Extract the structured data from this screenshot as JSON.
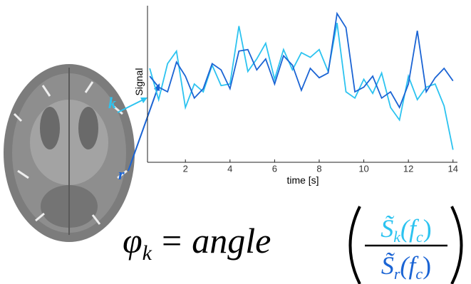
{
  "chart_data": {
    "type": "line",
    "x_label": "time [s]",
    "y_label": "Signal",
    "x": [
      0.4,
      0.8,
      1.2,
      1.6,
      2.0,
      2.4,
      2.8,
      3.2,
      3.6,
      4.0,
      4.4,
      4.8,
      5.2,
      5.6,
      6.0,
      6.4,
      6.8,
      7.2,
      7.6,
      8.0,
      8.4,
      8.8,
      9.2,
      9.6,
      10.0,
      10.4,
      10.8,
      11.2,
      11.6,
      12.0,
      12.4,
      12.8,
      13.2,
      13.6,
      14.0
    ],
    "series": [
      {
        "name": "k",
        "color": "#2cc3f0",
        "values": [
          60,
          40,
          63,
          71,
          35,
          50,
          45,
          62,
          49,
          50,
          87,
          58,
          66,
          76,
          53,
          72,
          59,
          70,
          67,
          72,
          58,
          89,
          45,
          41,
          53,
          44,
          57,
          35,
          27,
          55,
          40,
          48,
          50,
          36,
          8
        ]
      },
      {
        "name": "r",
        "color": "#1b64d4",
        "values": [
          55,
          48,
          45,
          64,
          55,
          41,
          47,
          63,
          59,
          47,
          71,
          72,
          59,
          66,
          50,
          68,
          62,
          46,
          60,
          54,
          57,
          95,
          86,
          45,
          48,
          55,
          41,
          45,
          35,
          50,
          84,
          45,
          54,
          60,
          52
        ]
      }
    ],
    "xlim": [
      0.3,
      14.2
    ],
    "ylim": [
      0,
      100
    ],
    "xticks": [
      2,
      4,
      6,
      8,
      10,
      12,
      14
    ]
  },
  "equation": {
    "lhs": "φ",
    "lhs_sub": "k",
    "operator": "=",
    "function": "angle",
    "numerator": {
      "symbol": "S̃",
      "sub": "k",
      "arg": "(f",
      "arg_sub": "c",
      "close": ")"
    },
    "denominator": {
      "symbol": "S̃",
      "sub": "r",
      "arg": "(f",
      "arg_sub": "c",
      "close": ")"
    }
  }
}
